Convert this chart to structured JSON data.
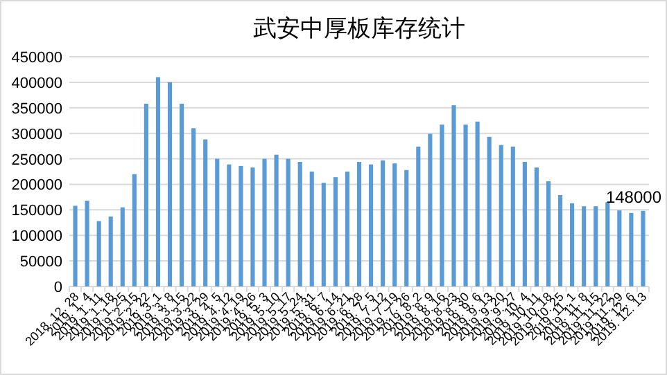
{
  "chart_data": {
    "type": "bar",
    "title": "武安中厚板库存统计",
    "categories": [
      "2018. 12. 28",
      "2019. 1. 4",
      "2019. 1. 11",
      "2019. 1. 18",
      "2019. 1. 25",
      "2019. 2. 15",
      "2019. 2. 22",
      "2019. 3. 1",
      "2019. 3. 8",
      "2019. 3. 15",
      "2019. 3. 22",
      "2019. 3. 29",
      "2019. 4. 5",
      "2019. 4. 12",
      "2019. 4. 19",
      "2019. 4. 26",
      "2019. 5. 3",
      "2019. 5. 10",
      "2019. 5. 17",
      "2019. 5. 24",
      "2019. 5. 31",
      "2019. 6. 7",
      "2019. 6. 14",
      "2019. 6. 21",
      "2019. 6. 28",
      "2019. 7. 5",
      "2019. 7. 12",
      "2019. 7. 19",
      "2019. 7. 26",
      "2019. 8. 2",
      "2019. 8. 9",
      "2019. 8. 16",
      "2019. 8. 23",
      "2019. 8. 30",
      "2019. 9. 6",
      "2019. 9. 13",
      "2019. 9. 20",
      "2019. 9. 27",
      "2019. 10. 4",
      "2019. 10. 11",
      "2019. 10. 18",
      "2019. 10. 25",
      "2019. 11. 1",
      "2019. 11. 8",
      "2019. 11. 15",
      "2019. 11. 22",
      "2019. 11. 29",
      "2019. 12. 6",
      "2019. 12. 13"
    ],
    "values": [
      158000,
      168000,
      128000,
      137000,
      155000,
      220000,
      358000,
      410000,
      400000,
      358000,
      310000,
      288000,
      250000,
      239000,
      236000,
      233000,
      250000,
      258000,
      250000,
      244000,
      225000,
      203000,
      214000,
      225000,
      244000,
      239000,
      247000,
      241000,
      228000,
      274000,
      299000,
      317000,
      355000,
      317000,
      323000,
      293000,
      277000,
      274000,
      244000,
      233000,
      206000,
      179000,
      163000,
      157000,
      157000,
      165000,
      149000,
      144000,
      148000
    ],
    "value_labels": [
      null,
      null,
      null,
      null,
      null,
      null,
      null,
      null,
      null,
      null,
      null,
      null,
      null,
      null,
      null,
      null,
      null,
      null,
      null,
      null,
      null,
      null,
      null,
      null,
      null,
      null,
      null,
      null,
      null,
      null,
      null,
      null,
      null,
      null,
      null,
      null,
      null,
      null,
      null,
      null,
      null,
      null,
      null,
      null,
      null,
      null,
      null,
      null,
      "148000"
    ],
    "color": "#5b9bd5",
    "ylim": [
      0,
      450000
    ],
    "yticks": [
      0,
      50000,
      100000,
      150000,
      200000,
      250000,
      300000,
      350000,
      400000,
      450000
    ],
    "grid": "y"
  }
}
